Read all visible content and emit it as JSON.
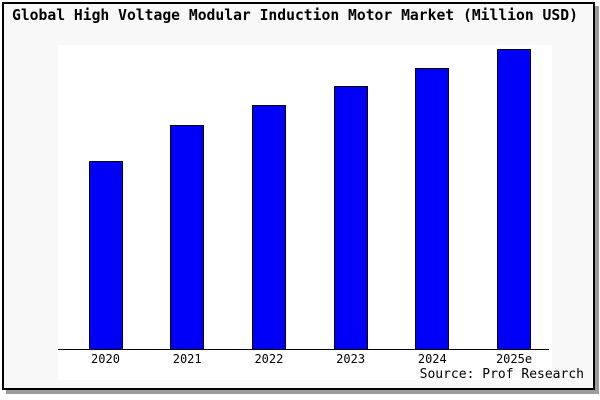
{
  "title": "Global High Voltage Modular Induction Motor Market (Million USD)",
  "source": "Source: Prof Research",
  "colors": {
    "bar_fill": "#0000f8",
    "bar_border": "#000000",
    "figure_bg": "#f8f8f8",
    "plot_bg": "#ffffff",
    "frame_border": "#000000",
    "frame_shadow": "#9c9c9c",
    "text": "#000000"
  },
  "chart_data": {
    "type": "bar",
    "title": "Global High Voltage Modular Induction Motor Market (Million USD)",
    "categories": [
      "2020",
      "2021",
      "2022",
      "2023",
      "2024",
      "2025e"
    ],
    "values": [
      62.7,
      74.7,
      81.3,
      87.7,
      93.7,
      100
    ],
    "values_note": "No y-axis scale or data labels shown; values are relative bar heights as % of tallest (2025e) bar",
    "xlabel": "",
    "ylabel": "",
    "ylim": [
      0,
      101
    ],
    "grid": false,
    "legend": null,
    "source_caption": "Source: Prof Research"
  }
}
